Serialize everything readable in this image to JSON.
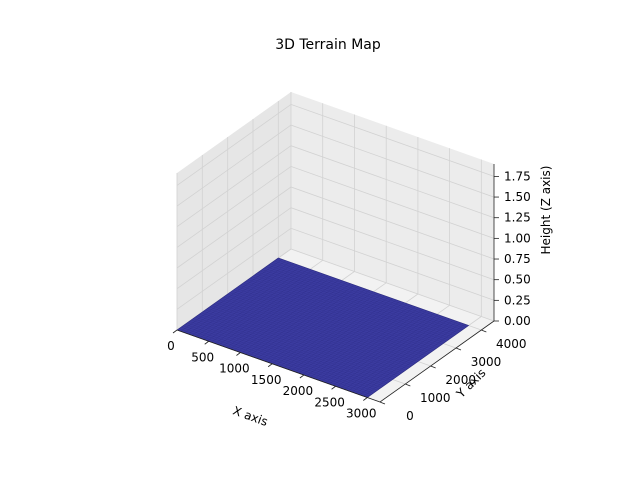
{
  "chart_data": {
    "type": "surface3d",
    "title": "3D Terrain Map",
    "xlabel": "X axis",
    "ylabel": "Y axis",
    "zlabel": "Height (Z axis)",
    "x_ticks": [
      "0",
      "500",
      "1000",
      "1500",
      "2000",
      "2500",
      "3000"
    ],
    "y_ticks": [
      "0",
      "1000",
      "2000",
      "3000",
      "4000"
    ],
    "z_ticks": [
      "0.00",
      "0.25",
      "0.50",
      "0.75",
      "1.00",
      "1.25",
      "1.50",
      "1.75"
    ],
    "xlim": [
      0,
      3200
    ],
    "ylim": [
      0,
      4500
    ],
    "zlim": [
      0,
      1.9
    ],
    "surface": {
      "x_range": [
        0,
        3000
      ],
      "y_range": [
        0,
        4000
      ],
      "z_value": 0,
      "color": "#3b3ba0",
      "edge_color": "#2a2a80"
    },
    "grid": true,
    "pane_color": "#f2f2f2"
  }
}
